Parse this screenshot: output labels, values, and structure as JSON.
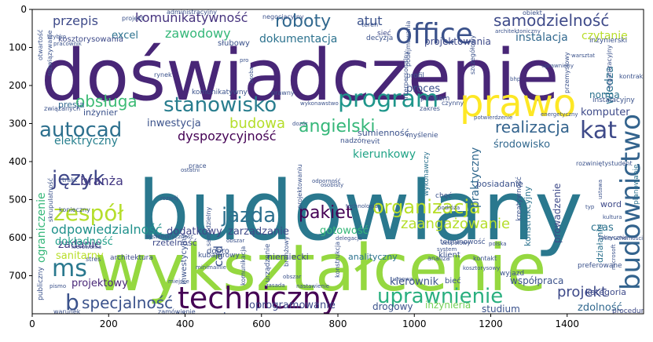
{
  "figure": {
    "x_ticks": [
      "0",
      "200",
      "400",
      "600",
      "800",
      "1000",
      "1200",
      "1400"
    ],
    "y_ticks": [
      "0",
      "100",
      "200",
      "300",
      "400",
      "500",
      "600",
      "700"
    ],
    "xlim": [
      0,
      1600
    ],
    "ylim": [
      800,
      0
    ]
  },
  "words": [
    {
      "text": "doświadczenie",
      "color": "#482677"
    },
    {
      "text": "budowlany",
      "color": "#2a788e"
    },
    {
      "text": "wykształcenie",
      "color": "#95d840"
    },
    {
      "text": "techniczny",
      "color": "#440154"
    },
    {
      "text": "prawo",
      "color": "#fde725"
    },
    {
      "text": "office",
      "color": "#3b528b"
    },
    {
      "text": "budownictwo",
      "color": "#33638d"
    },
    {
      "text": "program",
      "color": "#1f968b"
    },
    {
      "text": "autocad",
      "color": "#2d708e"
    },
    {
      "text": "stanowisko",
      "color": "#287d8e"
    },
    {
      "text": "kat",
      "color": "#3e4a89"
    },
    {
      "text": "jazda",
      "color": "#2d708e"
    },
    {
      "text": "organizacja",
      "color": "#b8de29"
    },
    {
      "text": "uprawnienie",
      "color": "#29af7f"
    },
    {
      "text": "zespół",
      "color": "#b5de2b"
    },
    {
      "text": "język",
      "color": "#3f4788"
    },
    {
      "text": "ms",
      "color": "#2a788e"
    },
    {
      "text": "pakiet",
      "color": "#440154"
    },
    {
      "text": "specjalność",
      "color": "#3b528b"
    },
    {
      "text": "samodzielność",
      "color": "#3e4a89"
    },
    {
      "text": "obsługa",
      "color": "#3cbb75"
    },
    {
      "text": "angielski",
      "color": "#35b779"
    },
    {
      "text": "roboty",
      "color": "#31688e"
    },
    {
      "text": "realizacja",
      "color": "#33638d"
    },
    {
      "text": "budowa",
      "color": "#b5de2b"
    },
    {
      "text": "projekt",
      "color": "#3e4a89"
    },
    {
      "text": "odpowiedzialność",
      "color": "#21918c"
    },
    {
      "text": "zaangażowanie",
      "color": "#b5de2b"
    },
    {
      "text": "komunikatywność",
      "color": "#46337e"
    },
    {
      "text": "zawodowy",
      "color": "#35b779"
    },
    {
      "text": "przepis",
      "color": "#3e4a89"
    },
    {
      "text": "atut",
      "color": "#3b528b"
    },
    {
      "text": "excel",
      "color": "#2c728e"
    },
    {
      "text": "dokumentacja",
      "color": "#2c728e"
    },
    {
      "text": "instalacja",
      "color": "#31688e"
    },
    {
      "text": "czytanie",
      "color": "#b8de29"
    },
    {
      "text": "dyspozycyjność",
      "color": "#440154"
    },
    {
      "text": "branża",
      "color": "#443983"
    },
    {
      "text": "elektryczny",
      "color": "#277f8e"
    },
    {
      "text": "inwestycja",
      "color": "#3b528b"
    },
    {
      "text": "kierunkowy",
      "color": "#20a386"
    },
    {
      "text": "środowisko",
      "color": "#31688e"
    },
    {
      "text": "dodatkowy",
      "color": "#404588"
    },
    {
      "text": "zarządzanie",
      "color": "#3e4a89"
    },
    {
      "text": "gotowość",
      "color": "#35b779"
    },
    {
      "text": "zadanie",
      "color": "#443983"
    },
    {
      "text": "sanitarny",
      "color": "#b8de29"
    },
    {
      "text": "dokładność",
      "color": "#1f9e89"
    },
    {
      "text": "rzetelność",
      "color": "#3e4a89"
    },
    {
      "text": "projektowy",
      "color": "#482677"
    },
    {
      "text": "kierowania",
      "color": "#3b528b"
    },
    {
      "text": "oprogramowanie",
      "color": "#3e4a89"
    },
    {
      "text": "drogowy",
      "color": "#3b528b"
    },
    {
      "text": "inżynieria",
      "color": "#73d056"
    },
    {
      "text": "studium",
      "color": "#3b528b"
    },
    {
      "text": "kierownik",
      "color": "#3b528b"
    },
    {
      "text": "współpraca",
      "color": "#3b528b"
    },
    {
      "text": "zdolność",
      "color": "#31688e"
    },
    {
      "text": "komputer",
      "color": "#3e4a89"
    },
    {
      "text": "kategoria",
      "color": "#3e4a89"
    },
    {
      "text": "b",
      "color": "#3b528b"
    },
    {
      "text": "cad",
      "color": "#3b528b"
    },
    {
      "text": "czas",
      "color": "#2c728e"
    },
    {
      "text": "praktyczny",
      "color": "#31688e"
    },
    {
      "text": "wiedza",
      "color": "#2c728e"
    },
    {
      "text": "prowadzenie",
      "color": "#3e4a89"
    },
    {
      "text": "norma",
      "color": "#2c728e"
    },
    {
      "text": "proces",
      "color": "#3b528b"
    },
    {
      "text": "projektowania",
      "color": "#3e4a89"
    },
    {
      "text": "słubowy",
      "color": "#3b528b"
    },
    {
      "text": "kosztorysowania",
      "color": "#3e4a89"
    },
    {
      "text": "inżynier",
      "color": "#3b528b"
    },
    {
      "text": "presja",
      "color": "#31688e"
    },
    {
      "text": "ograniczenie",
      "color": "#35b779"
    },
    {
      "text": "sumienność",
      "color": "#3b528b"
    },
    {
      "text": "konstrukcyjny",
      "color": "#2c728e"
    },
    {
      "text": "posiadanie",
      "color": "#3b528b"
    },
    {
      "text": "word",
      "color": "#3e4a89"
    },
    {
      "text": "działanie",
      "color": "#2c728e"
    },
    {
      "text": "analityczny",
      "color": "#2c728e"
    },
    {
      "text": "niemiecki",
      "color": "#3e4a89"
    },
    {
      "text": "wykonawczy",
      "color": "#2c728e"
    },
    {
      "text": "dobro",
      "color": "#3b528b"
    },
    {
      "text": "terminowość",
      "color": "#3b528b"
    },
    {
      "text": "profil",
      "color": "#3b528b"
    },
    {
      "text": "sieć",
      "color": "#3e4a89"
    },
    {
      "text": "decyzja",
      "color": "#3b528b"
    },
    {
      "text": "teren",
      "color": "#3b528b"
    },
    {
      "text": "instalacyjny",
      "color": "#3b528b"
    },
    {
      "text": "kontrakt",
      "color": "#3b528b"
    },
    {
      "text": "klient",
      "color": "#3b528b"
    },
    {
      "text": "analiza",
      "color": "#3b528b"
    },
    {
      "text": "kontakt",
      "color": "#3b528b"
    },
    {
      "text": "bieć",
      "color": "#3b528b"
    },
    {
      "text": "architektura",
      "color": "#3e4a89"
    },
    {
      "text": "urządzenie",
      "color": "#3b528b"
    },
    {
      "text": "zamówienie",
      "color": "#3b528b"
    },
    {
      "text": "warunek",
      "color": "#3b528b"
    },
    {
      "text": "rynek",
      "color": "#3b528b"
    },
    {
      "text": "trakt",
      "color": "#3b528b"
    },
    {
      "text": "chęć",
      "color": "#3b528b"
    },
    {
      "text": "procedura",
      "color": "#3e4a89"
    },
    {
      "text": "planowanie",
      "color": "#2c728e"
    },
    {
      "text": "kreatywność",
      "color": "#3b528b"
    },
    {
      "text": "kubaturowy",
      "color": "#3b528b"
    },
    {
      "text": "stres",
      "color": "#3b528b"
    },
    {
      "text": "rozwiązywanie",
      "color": "#3b528b"
    },
    {
      "text": "otwartość",
      "color": "#3b528b"
    },
    {
      "text": "związanych",
      "color": "#3b528b"
    },
    {
      "text": "projektowaniu",
      "color": "#3b528b"
    },
    {
      "text": "zakres",
      "color": "#3b528b"
    },
    {
      "text": "czynny",
      "color": "#3b528b"
    },
    {
      "text": "skrupulatność",
      "color": "#3b528b"
    },
    {
      "text": "revit",
      "color": "#3b528b"
    },
    {
      "text": "nadzór",
      "color": "#3b528b"
    },
    {
      "text": "myślenie",
      "color": "#3b528b"
    },
    {
      "text": "problem",
      "color": "#3b528b"
    },
    {
      "text": "prace",
      "color": "#3b528b"
    },
    {
      "text": "samodzielny",
      "color": "#3b528b"
    },
    {
      "text": "komunikatywny",
      "color": "#3b528b"
    },
    {
      "text": "inwestycyjny",
      "color": "#3b528b"
    },
    {
      "text": "rozwiniętystudent",
      "color": "#3b528b"
    },
    {
      "text": "preferowane",
      "color": "#3b528b"
    },
    {
      "text": "przemysłowy",
      "color": "#3b528b"
    },
    {
      "text": "organizacyjny",
      "color": "#3b528b"
    },
    {
      "text": "interpersonalny",
      "color": "#3b528b"
    },
    {
      "text": "podejmowania",
      "color": "#3b528b"
    },
    {
      "text": "szczegółowy",
      "color": "#3b528b"
    },
    {
      "text": "konieczny",
      "color": "#3b528b"
    },
    {
      "text": "projekt",
      "color": "#3b528b"
    },
    {
      "text": "obiekt",
      "color": "#3b528b"
    },
    {
      "text": "administracyjny",
      "color": "#3b528b"
    },
    {
      "text": "negocjacyjny",
      "color": "#3b528b"
    },
    {
      "text": "architektoniczny",
      "color": "#3b528b"
    },
    {
      "text": "inżynierski",
      "color": "#3b528b"
    },
    {
      "text": "pracownik",
      "color": "#3b528b"
    },
    {
      "text": "szybko",
      "color": "#3b528b"
    },
    {
      "text": "prawny",
      "color": "#3b528b"
    },
    {
      "text": "wykonawstwo",
      "color": "#3b528b"
    },
    {
      "text": "bhp",
      "color": "#3b528b"
    },
    {
      "text": "osoba",
      "color": "#3b528b"
    },
    {
      "text": "pro",
      "color": "#3b528b"
    },
    {
      "text": "odporność",
      "color": "#3b528b"
    },
    {
      "text": "osobisty",
      "color": "#3b528b"
    },
    {
      "text": "podróża",
      "color": "#3b528b"
    },
    {
      "text": "technologia",
      "color": "#3b528b"
    },
    {
      "text": "kierowania",
      "color": "#3b528b"
    },
    {
      "text": "ustawa",
      "color": "#3b528b"
    },
    {
      "text": "kultura",
      "color": "#3b528b"
    },
    {
      "text": "typ",
      "color": "#3b528b"
    },
    {
      "text": "nieruchomości",
      "color": "#3b528b"
    },
    {
      "text": "microsoft",
      "color": "#3b528b"
    },
    {
      "text": "zespołowy",
      "color": "#3b528b"
    },
    {
      "text": "polska",
      "color": "#3b528b"
    },
    {
      "text": "delegacja",
      "color": "#3b528b"
    },
    {
      "text": "systematyczność",
      "color": "#3b528b"
    },
    {
      "text": "komunikacja",
      "color": "#3b528b"
    },
    {
      "text": "zasada",
      "color": "#3b528b"
    },
    {
      "text": "nastawienie",
      "color": "#3b528b"
    },
    {
      "text": "minimalnie",
      "color": "#3b528b"
    },
    {
      "text": "wyjazd",
      "color": "#3b528b"
    },
    {
      "text": "kosztorysowy",
      "color": "#3b528b"
    },
    {
      "text": "pismo",
      "color": "#3b528b"
    },
    {
      "text": "miejsce",
      "color": "#3b528b"
    },
    {
      "text": "system",
      "color": "#3b528b"
    },
    {
      "text": "konstrukcja",
      "color": "#3b528b"
    },
    {
      "text": "branżowy",
      "color": "#3b528b"
    },
    {
      "text": "obszar",
      "color": "#3b528b"
    },
    {
      "text": "ostatni",
      "color": "#3b528b"
    },
    {
      "text": "umowa",
      "color": "#3b528b"
    },
    {
      "text": "dozór",
      "color": "#3b528b"
    },
    {
      "text": "rozwój",
      "color": "#3b528b"
    },
    {
      "text": "potwierdzenie",
      "color": "#3b528b"
    },
    {
      "text": "uprawniony",
      "color": "#3b528b"
    },
    {
      "text": "warsztat",
      "color": "#3b528b"
    },
    {
      "text": "energetyczny",
      "color": "#3b528b"
    },
    {
      "text": "publiczny",
      "color": "#3b528b"
    },
    {
      "text": "fabrycznie",
      "color": "#3b528b"
    },
    {
      "text": "obszar",
      "color": "#3b528b"
    }
  ]
}
